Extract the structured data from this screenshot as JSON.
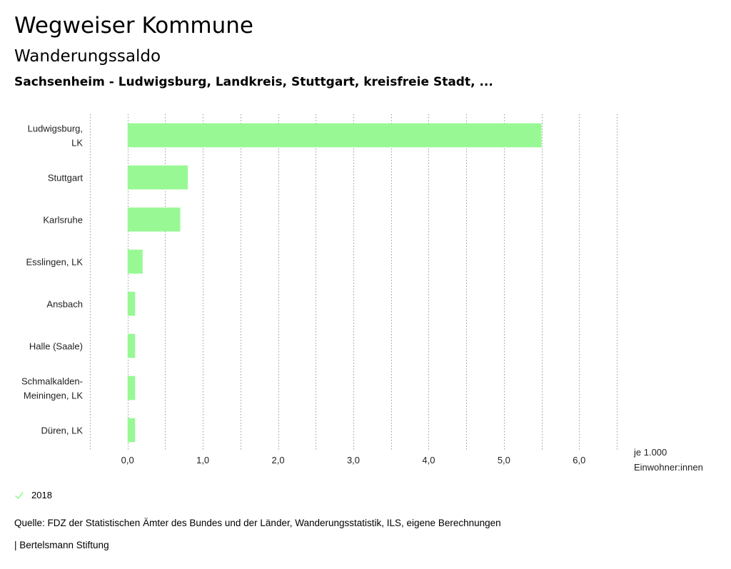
{
  "header": {
    "title": "Wegweiser Kommune",
    "subtitle": "Wanderungssaldo",
    "region": "Sachsenheim - Ludwigsburg, Landkreis, Stuttgart, kreisfreie Stadt, ..."
  },
  "chart_data": {
    "type": "bar",
    "orientation": "horizontal",
    "categories": [
      [
        "Ludwigsburg,",
        "LK"
      ],
      [
        "Stuttgart"
      ],
      [
        "Karlsruhe"
      ],
      [
        "Esslingen, LK"
      ],
      [
        "Ansbach"
      ],
      [
        "Halle (Saale)"
      ],
      [
        "Schmalkalden-",
        "Meiningen, LK"
      ],
      [
        "Düren, LK"
      ]
    ],
    "series": [
      {
        "name": "2018",
        "color": "#98f994",
        "values": [
          5.5,
          0.8,
          0.7,
          0.2,
          0.1,
          0.1,
          0.1,
          0.1
        ]
      }
    ],
    "xticks": [
      "0,0",
      "1,0",
      "2,0",
      "3,0",
      "4,0",
      "5,0",
      "6,0"
    ],
    "xtick_values": [
      0,
      1,
      2,
      3,
      4,
      5,
      6
    ],
    "xlim": [
      -0.5,
      6.5
    ],
    "grid_step": 0.5,
    "xlabel": [
      "je 1.000",
      "Einwohner:innen"
    ]
  },
  "legend": {
    "label": "2018",
    "color": "#98f994"
  },
  "footer": {
    "source": "Quelle: FDZ der Statistischen Ämter des Bundes und der Länder, Wanderungsstatistik, ILS, eigene Berechnungen",
    "publisher": "| Bertelsmann Stiftung"
  }
}
